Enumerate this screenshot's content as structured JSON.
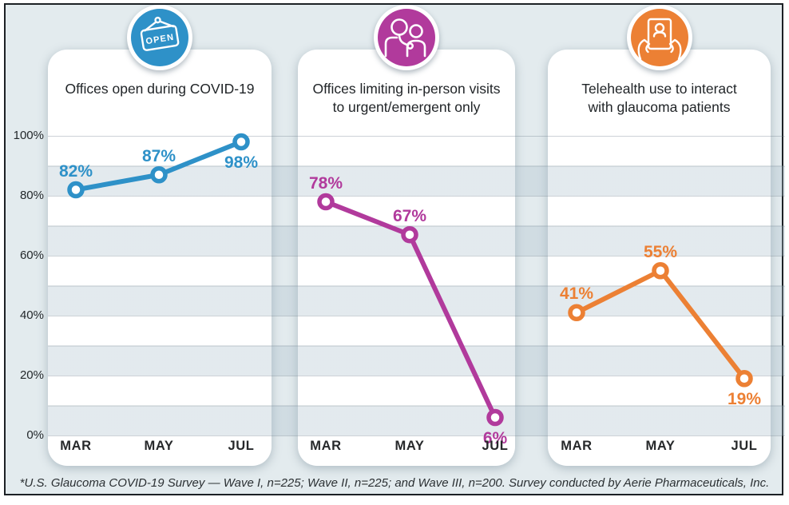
{
  "figure": {
    "footnote": "*U.S. Glaucoma COVID-19 Survey — Wave I, n=225; Wave II, n=225; and Wave III, n=200. Survey conducted by Aerie Pharmaceuticals, Inc.",
    "colors": {
      "background": "#e3ebee",
      "card": "#ffffff",
      "border": "#1c2125",
      "text": "#212528",
      "blue": "#2e91c8",
      "magenta": "#b13a9c",
      "orange": "#ec8034"
    }
  },
  "axis": {
    "tick_labels": [
      "100%",
      "80%",
      "60%",
      "40%",
      "20%",
      "0%"
    ],
    "tick_values": [
      100,
      80,
      60,
      40,
      20,
      0
    ],
    "ylim": [
      0,
      100
    ],
    "grid_step_pct": 10
  },
  "chart_data": [
    {
      "type": "line",
      "title_lines": [
        "Offices open during COVID-19"
      ],
      "icon": "open-sign-icon",
      "color": "#2e91c8",
      "categories": [
        "MAR",
        "MAY",
        "JUL"
      ],
      "values": [
        82,
        87,
        98
      ],
      "point_labels": [
        "82%",
        "87%",
        "98%"
      ],
      "label_pos": [
        "above",
        "above",
        "below"
      ],
      "ylim": [
        0,
        100
      ]
    },
    {
      "type": "line",
      "title_lines": [
        "Offices limiting in-person visits",
        "to urgent/emergent only"
      ],
      "icon": "doctor-stethoscope-icon",
      "color": "#b13a9c",
      "categories": [
        "MAR",
        "MAY",
        "JUL"
      ],
      "values": [
        78,
        67,
        6
      ],
      "point_labels": [
        "78%",
        "67%",
        "6%"
      ],
      "label_pos": [
        "above",
        "above",
        "below"
      ],
      "ylim": [
        0,
        100
      ]
    },
    {
      "type": "line",
      "title_lines": [
        "Telehealth use to interact",
        "with glaucoma patients"
      ],
      "icon": "hands-tablet-icon",
      "color": "#ec8034",
      "categories": [
        "MAR",
        "MAY",
        "JUL"
      ],
      "values": [
        41,
        55,
        19
      ],
      "point_labels": [
        "41%",
        "55%",
        "19%"
      ],
      "label_pos": [
        "above",
        "above",
        "below"
      ],
      "ylim": [
        0,
        100
      ]
    }
  ]
}
